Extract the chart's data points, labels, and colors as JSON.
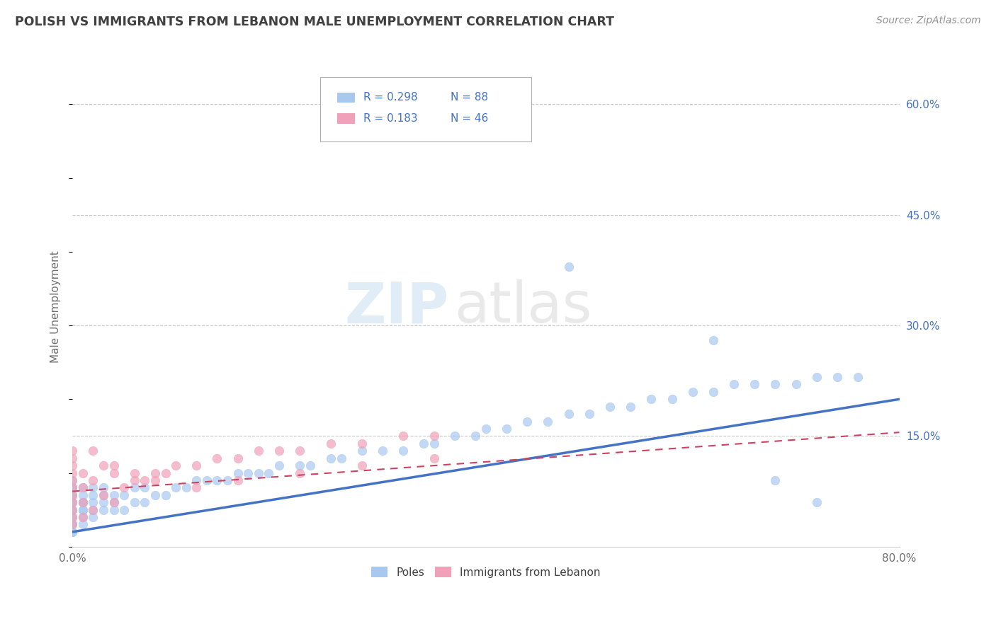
{
  "title": "POLISH VS IMMIGRANTS FROM LEBANON MALE UNEMPLOYMENT CORRELATION CHART",
  "source": "Source: ZipAtlas.com",
  "ylabel": "Male Unemployment",
  "xlim": [
    0.0,
    0.8
  ],
  "ylim": [
    0.0,
    0.65
  ],
  "ytick_right_labels": [
    "60.0%",
    "45.0%",
    "30.0%",
    "15.0%"
  ],
  "ytick_right_values": [
    0.6,
    0.45,
    0.3,
    0.15
  ],
  "poles_color": "#a8c8f0",
  "lebanon_color": "#f0a0b8",
  "line_poles_color": "#4472c4",
  "line_lebanon_color": "#d04060",
  "background_color": "#ffffff",
  "grid_color": "#c8c8c8",
  "title_color": "#404040",
  "source_color": "#909090",
  "axis_label_color": "#707070",
  "right_tick_color": "#4472c4",
  "poles_x": [
    0.0,
    0.0,
    0.0,
    0.0,
    0.0,
    0.0,
    0.0,
    0.0,
    0.0,
    0.0,
    0.0,
    0.0,
    0.0,
    0.0,
    0.0,
    0.01,
    0.01,
    0.01,
    0.01,
    0.01,
    0.01,
    0.01,
    0.01,
    0.02,
    0.02,
    0.02,
    0.02,
    0.02,
    0.03,
    0.03,
    0.03,
    0.03,
    0.04,
    0.04,
    0.04,
    0.05,
    0.05,
    0.06,
    0.06,
    0.07,
    0.07,
    0.08,
    0.09,
    0.1,
    0.11,
    0.12,
    0.13,
    0.14,
    0.15,
    0.16,
    0.17,
    0.18,
    0.19,
    0.2,
    0.22,
    0.23,
    0.25,
    0.26,
    0.28,
    0.3,
    0.32,
    0.34,
    0.35,
    0.37,
    0.39,
    0.4,
    0.42,
    0.44,
    0.46,
    0.48,
    0.5,
    0.52,
    0.54,
    0.56,
    0.58,
    0.6,
    0.62,
    0.64,
    0.66,
    0.68,
    0.7,
    0.72,
    0.74,
    0.76,
    0.48,
    0.62,
    0.68,
    0.72
  ],
  "poles_y": [
    0.02,
    0.02,
    0.03,
    0.03,
    0.04,
    0.04,
    0.05,
    0.05,
    0.06,
    0.06,
    0.07,
    0.07,
    0.08,
    0.08,
    0.09,
    0.03,
    0.04,
    0.05,
    0.05,
    0.06,
    0.06,
    0.07,
    0.08,
    0.04,
    0.05,
    0.06,
    0.07,
    0.08,
    0.05,
    0.06,
    0.07,
    0.08,
    0.05,
    0.06,
    0.07,
    0.05,
    0.07,
    0.06,
    0.08,
    0.06,
    0.08,
    0.07,
    0.07,
    0.08,
    0.08,
    0.09,
    0.09,
    0.09,
    0.09,
    0.1,
    0.1,
    0.1,
    0.1,
    0.11,
    0.11,
    0.11,
    0.12,
    0.12,
    0.13,
    0.13,
    0.13,
    0.14,
    0.14,
    0.15,
    0.15,
    0.16,
    0.16,
    0.17,
    0.17,
    0.18,
    0.18,
    0.19,
    0.19,
    0.2,
    0.2,
    0.21,
    0.21,
    0.22,
    0.22,
    0.22,
    0.22,
    0.23,
    0.23,
    0.23,
    0.38,
    0.28,
    0.09,
    0.06
  ],
  "leb_x": [
    0.0,
    0.0,
    0.0,
    0.0,
    0.0,
    0.0,
    0.0,
    0.0,
    0.0,
    0.0,
    0.0,
    0.01,
    0.01,
    0.01,
    0.01,
    0.02,
    0.02,
    0.03,
    0.03,
    0.04,
    0.04,
    0.05,
    0.06,
    0.07,
    0.08,
    0.09,
    0.1,
    0.12,
    0.14,
    0.16,
    0.18,
    0.2,
    0.22,
    0.25,
    0.28,
    0.32,
    0.35,
    0.02,
    0.04,
    0.06,
    0.08,
    0.12,
    0.16,
    0.22,
    0.28,
    0.35
  ],
  "leb_y": [
    0.03,
    0.04,
    0.05,
    0.06,
    0.07,
    0.08,
    0.09,
    0.1,
    0.11,
    0.12,
    0.13,
    0.04,
    0.06,
    0.08,
    0.1,
    0.05,
    0.09,
    0.07,
    0.11,
    0.06,
    0.1,
    0.08,
    0.09,
    0.09,
    0.1,
    0.1,
    0.11,
    0.11,
    0.12,
    0.12,
    0.13,
    0.13,
    0.13,
    0.14,
    0.14,
    0.15,
    0.15,
    0.13,
    0.11,
    0.1,
    0.09,
    0.08,
    0.09,
    0.1,
    0.11,
    0.12
  ]
}
